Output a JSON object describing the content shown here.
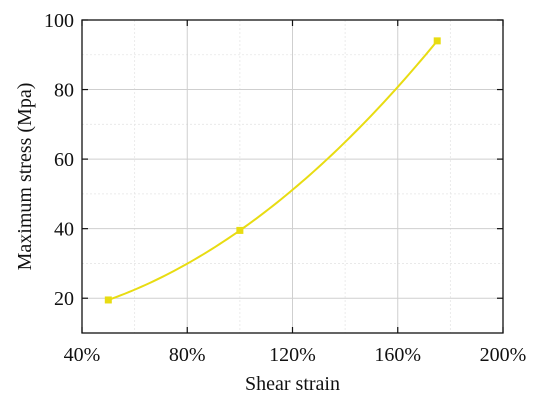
{
  "chart_data": {
    "type": "line",
    "xlabel": "Shear strain",
    "ylabel": "Maximum stress (Mpa)",
    "xlim": [
      0.4,
      2.0
    ],
    "ylim": [
      10,
      100
    ],
    "x_ticks": [
      0.4,
      0.8,
      1.2,
      1.6,
      2.0
    ],
    "x_tick_labels": [
      "40%",
      "80%",
      "120%",
      "160%",
      "200%"
    ],
    "y_ticks": [
      20,
      40,
      60,
      80,
      100
    ],
    "y_tick_labels": [
      "20",
      "40",
      "60",
      "80",
      "100"
    ],
    "grid": true,
    "series": [
      {
        "color": "#e8dc12",
        "marker": "square",
        "x": [
          0.5,
          1.0,
          1.75
        ],
        "values": [
          19.5,
          39.5,
          94
        ]
      }
    ]
  }
}
